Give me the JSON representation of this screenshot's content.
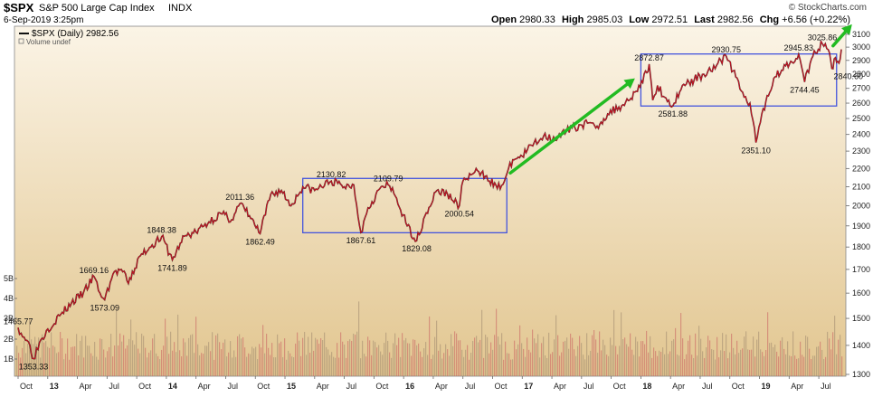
{
  "header": {
    "symbol": "$SPX",
    "name": "S&P 500 Large Cap Index",
    "exchange": "INDX",
    "datetime": "6-Sep-2019 3:25pm",
    "copyright": "© StockCharts.com",
    "quote": {
      "open_label": "Open",
      "open": "2980.33",
      "high_label": "High",
      "high": "2985.03",
      "low_label": "Low",
      "low": "2972.51",
      "last_label": "Last",
      "last": "2982.56",
      "chg_label": "Chg",
      "chg": "+6.56 (+0.22%)"
    }
  },
  "legend": {
    "series_label": "$SPX (Daily) 2982.56",
    "volume_label": "Volume undef"
  },
  "colors": {
    "price_line": "#cc1122",
    "price_line_dark": "#111111",
    "box": "#4455dd",
    "arrow": "#22bb22",
    "volume": "#c86060",
    "bg_top": "#fbf4e6",
    "bg_bottom": "#e2c690"
  },
  "chart_data": {
    "type": "line",
    "title": "$SPX (Daily) 2982.56",
    "y_scale": "log",
    "ylim": [
      1300,
      3150
    ],
    "y_ticks": [
      1300,
      1400,
      1500,
      1600,
      1700,
      1800,
      1900,
      2000,
      2100,
      2200,
      2300,
      2400,
      2500,
      2600,
      2700,
      2800,
      2900,
      3000,
      3100
    ],
    "volume_ticks": [
      "1B",
      "2B",
      "3B",
      "4B",
      "5B"
    ],
    "x_labels": [
      "Oct",
      "13",
      "Apr",
      "Jul",
      "Oct",
      "14",
      "Apr",
      "Jul",
      "Oct",
      "15",
      "Apr",
      "Jul",
      "Oct",
      "16",
      "Apr",
      "Jul",
      "Oct",
      "17",
      "Apr",
      "Jul",
      "Oct",
      "18",
      "Apr",
      "Jul",
      "Oct",
      "19",
      "Apr",
      "Jul"
    ],
    "x_label_times": [
      2012.75,
      2013.0,
      2013.25,
      2013.5,
      2013.75,
      2014.0,
      2014.25,
      2014.5,
      2014.75,
      2015.0,
      2015.25,
      2015.5,
      2015.75,
      2016.0,
      2016.25,
      2016.5,
      2016.75,
      2017.0,
      2017.25,
      2017.5,
      2017.75,
      2018.0,
      2018.25,
      2018.5,
      2018.75,
      2019.0,
      2019.25,
      2019.5
    ],
    "x_range": [
      2012.75,
      2019.69
    ],
    "series": [
      {
        "points": [
          [
            2012.75,
            1465
          ],
          [
            2012.8,
            1430
          ],
          [
            2012.85,
            1400
          ],
          [
            2012.88,
            1353.33
          ],
          [
            2012.93,
            1410
          ],
          [
            2013.0,
            1460
          ],
          [
            2013.1,
            1510
          ],
          [
            2013.2,
            1560
          ],
          [
            2013.3,
            1600
          ],
          [
            2013.39,
            1669.16
          ],
          [
            2013.44,
            1600
          ],
          [
            2013.48,
            1573.09
          ],
          [
            2013.55,
            1680
          ],
          [
            2013.62,
            1700
          ],
          [
            2013.68,
            1640
          ],
          [
            2013.78,
            1760
          ],
          [
            2013.88,
            1810
          ],
          [
            2013.96,
            1848.38
          ],
          [
            2014.05,
            1741.89
          ],
          [
            2014.15,
            1850
          ],
          [
            2014.25,
            1870
          ],
          [
            2014.36,
            1920
          ],
          [
            2014.46,
            1960
          ],
          [
            2014.55,
            1930
          ],
          [
            2014.62,
            2011.36
          ],
          [
            2014.7,
            1950
          ],
          [
            2014.79,
            1862.49
          ],
          [
            2014.88,
            2060
          ],
          [
            2014.97,
            2080
          ],
          [
            2015.05,
            2000
          ],
          [
            2015.15,
            2100
          ],
          [
            2015.25,
            2080
          ],
          [
            2015.39,
            2130.82
          ],
          [
            2015.5,
            2100
          ],
          [
            2015.58,
            2110
          ],
          [
            2015.64,
            1867.61
          ],
          [
            2015.7,
            1990
          ],
          [
            2015.8,
            2090
          ],
          [
            2015.87,
            2109.79
          ],
          [
            2015.93,
            2050
          ],
          [
            2016.03,
            1900
          ],
          [
            2016.11,
            1829.08
          ],
          [
            2016.18,
            1950
          ],
          [
            2016.28,
            2080
          ],
          [
            2016.37,
            2060
          ],
          [
            2016.47,
            2000.54
          ],
          [
            2016.5,
            2130
          ],
          [
            2016.6,
            2180
          ],
          [
            2016.7,
            2160
          ],
          [
            2016.79,
            2090
          ],
          [
            2016.85,
            2130
          ],
          [
            2016.92,
            2250
          ],
          [
            2017.0,
            2270
          ],
          [
            2017.1,
            2350
          ],
          [
            2017.18,
            2390
          ],
          [
            2017.3,
            2380
          ],
          [
            2017.42,
            2440
          ],
          [
            2017.55,
            2470
          ],
          [
            2017.62,
            2440
          ],
          [
            2017.72,
            2530
          ],
          [
            2017.85,
            2590
          ],
          [
            2017.96,
            2680
          ],
          [
            2018.05,
            2810
          ],
          [
            2018.07,
            2872.87
          ],
          [
            2018.1,
            2620
          ],
          [
            2018.14,
            2720
          ],
          [
            2018.2,
            2640
          ],
          [
            2018.27,
            2581.88
          ],
          [
            2018.35,
            2720
          ],
          [
            2018.45,
            2760
          ],
          [
            2018.53,
            2800
          ],
          [
            2018.65,
            2880
          ],
          [
            2018.72,
            2930.75
          ],
          [
            2018.8,
            2780
          ],
          [
            2018.87,
            2640
          ],
          [
            2018.92,
            2600
          ],
          [
            2018.97,
            2351.1
          ],
          [
            2019.02,
            2530
          ],
          [
            2019.12,
            2770
          ],
          [
            2019.22,
            2860
          ],
          [
            2019.33,
            2945.83
          ],
          [
            2019.38,
            2744.45
          ],
          [
            2019.45,
            2930
          ],
          [
            2019.53,
            3025.86
          ],
          [
            2019.58,
            2980
          ],
          [
            2019.61,
            2840.6
          ],
          [
            2019.64,
            2920
          ],
          [
            2019.67,
            2880
          ],
          [
            2019.69,
            2982.56
          ]
        ]
      }
    ],
    "annotations": [
      {
        "text": "1465.77",
        "x": 2012.75,
        "y": 1465
      },
      {
        "text": "1353.33",
        "x": 2012.88,
        "y": 1353.33
      },
      {
        "text": "1669.16",
        "x": 2013.39,
        "y": 1669.16
      },
      {
        "text": "1573.09",
        "x": 2013.48,
        "y": 1573.09
      },
      {
        "text": "1848.38",
        "x": 2013.96,
        "y": 1848.38
      },
      {
        "text": "1741.89",
        "x": 2014.05,
        "y": 1741.89
      },
      {
        "text": "2011.36",
        "x": 2014.62,
        "y": 2011.36
      },
      {
        "text": "1862.49",
        "x": 2014.79,
        "y": 1862.49
      },
      {
        "text": "2130.82",
        "x": 2015.39,
        "y": 2130.82
      },
      {
        "text": "1867.61",
        "x": 2015.64,
        "y": 1867.61
      },
      {
        "text": "2109.79",
        "x": 2015.87,
        "y": 2109.79
      },
      {
        "text": "1829.08",
        "x": 2016.11,
        "y": 1829.08
      },
      {
        "text": "2000.54",
        "x": 2016.47,
        "y": 2000.54
      },
      {
        "text": "2872.87",
        "x": 2018.07,
        "y": 2872.87
      },
      {
        "text": "2581.88",
        "x": 2018.27,
        "y": 2581.88
      },
      {
        "text": "2930.75",
        "x": 2018.72,
        "y": 2930.75
      },
      {
        "text": "2351.10",
        "x": 2018.97,
        "y": 2351.1
      },
      {
        "text": "2945.83",
        "x": 2019.33,
        "y": 2945.83
      },
      {
        "text": "2744.45",
        "x": 2019.38,
        "y": 2744.45
      },
      {
        "text": "3025.86",
        "x": 2019.53,
        "y": 3025.86
      },
      {
        "text": "2840.60",
        "x": 2019.61,
        "y": 2840.6
      }
    ],
    "consolidation_boxes": [
      {
        "x0": 2015.15,
        "x1": 2016.87,
        "y0": 1867,
        "y1": 2145
      },
      {
        "x0": 2018.0,
        "x1": 2019.65,
        "y0": 2581,
        "y1": 2948
      }
    ],
    "trend_arrows": [
      {
        "x0": 2016.9,
        "y0": 2175,
        "x1": 2017.95,
        "y1": 2770
      },
      {
        "x0": 2019.62,
        "y0": 3010,
        "x1": 2019.78,
        "y1": 3180
      }
    ],
    "grid": false,
    "volume": {
      "seed": 7
    }
  }
}
